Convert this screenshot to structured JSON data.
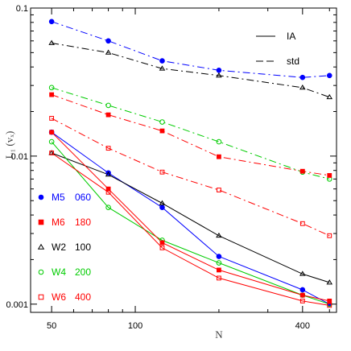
{
  "chart_data": {
    "type": "line",
    "xscale": "log",
    "yscale": "log",
    "xlim": [
      42,
      530
    ],
    "ylim": [
      0.00088,
      0.1
    ],
    "xlabel": "N",
    "ylabel": "L₁ (vₓ)",
    "x_ticks": [
      50,
      100,
      400
    ],
    "y_ticks": [
      0.1,
      0.01,
      0.001
    ],
    "style_legend": [
      {
        "label": "IA",
        "dash": "solid"
      },
      {
        "label": "std",
        "dash": "dashed"
      }
    ],
    "series_legend": [
      {
        "model": "M5",
        "value": "060",
        "color": "#0000ff",
        "marker": "filled-circle"
      },
      {
        "model": "M6",
        "value": "180",
        "color": "#ff0000",
        "marker": "filled-square"
      },
      {
        "model": "W2",
        "value": "100",
        "color": "#000000",
        "marker": "open-triangle"
      },
      {
        "model": "W4",
        "value": "200",
        "color": "#00cc00",
        "marker": "open-circle"
      },
      {
        "model": "W6",
        "value": "400",
        "color": "#ff0000",
        "marker": "open-square"
      }
    ],
    "x": [
      50,
      80,
      125,
      200,
      400,
      500
    ],
    "series": [
      {
        "model": "M5",
        "style": "std",
        "color": "#0000ff",
        "marker": "filled-circle",
        "values": [
          0.081,
          0.06,
          0.044,
          0.038,
          0.034,
          0.035
        ]
      },
      {
        "model": "W2",
        "style": "std",
        "color": "#000000",
        "marker": "open-triangle",
        "values": [
          0.058,
          0.05,
          0.039,
          0.035,
          0.029,
          0.025
        ]
      },
      {
        "model": "W4",
        "style": "std",
        "color": "#00cc00",
        "marker": "open-circle",
        "values": [
          0.029,
          0.022,
          0.017,
          0.0125,
          0.0078,
          0.007
        ]
      },
      {
        "model": "M6",
        "style": "std",
        "color": "#ff0000",
        "marker": "filled-square",
        "values": [
          0.026,
          0.019,
          0.0148,
          0.0099,
          0.0079,
          0.0074
        ]
      },
      {
        "model": "W6",
        "style": "std",
        "color": "#ff0000",
        "marker": "open-square",
        "values": [
          0.018,
          0.0113,
          0.0078,
          0.0059,
          0.0035,
          0.0029
        ]
      },
      {
        "model": "M5",
        "style": "IA",
        "color": "#0000ff",
        "marker": "filled-circle",
        "values": [
          0.0145,
          0.0077,
          0.0045,
          0.0021,
          0.00125,
          0.001
        ]
      },
      {
        "model": "W2",
        "style": "IA",
        "color": "#000000",
        "marker": "open-triangle",
        "values": [
          0.0105,
          0.0075,
          0.0048,
          0.0029,
          0.0016,
          0.0014
        ]
      },
      {
        "model": "W4",
        "style": "IA",
        "color": "#00cc00",
        "marker": "open-circle",
        "values": [
          0.0125,
          0.0045,
          0.0027,
          0.0019,
          0.00115,
          0.001
        ]
      },
      {
        "model": "M6",
        "style": "IA",
        "color": "#ff0000",
        "marker": "filled-square",
        "values": [
          0.0145,
          0.006,
          0.0026,
          0.0017,
          0.00115,
          0.00105
        ]
      },
      {
        "model": "W6",
        "style": "IA",
        "color": "#ff0000",
        "marker": "open-square",
        "values": [
          0.0105,
          0.0057,
          0.0024,
          0.0015,
          0.00105,
          0.00098
        ]
      }
    ]
  }
}
